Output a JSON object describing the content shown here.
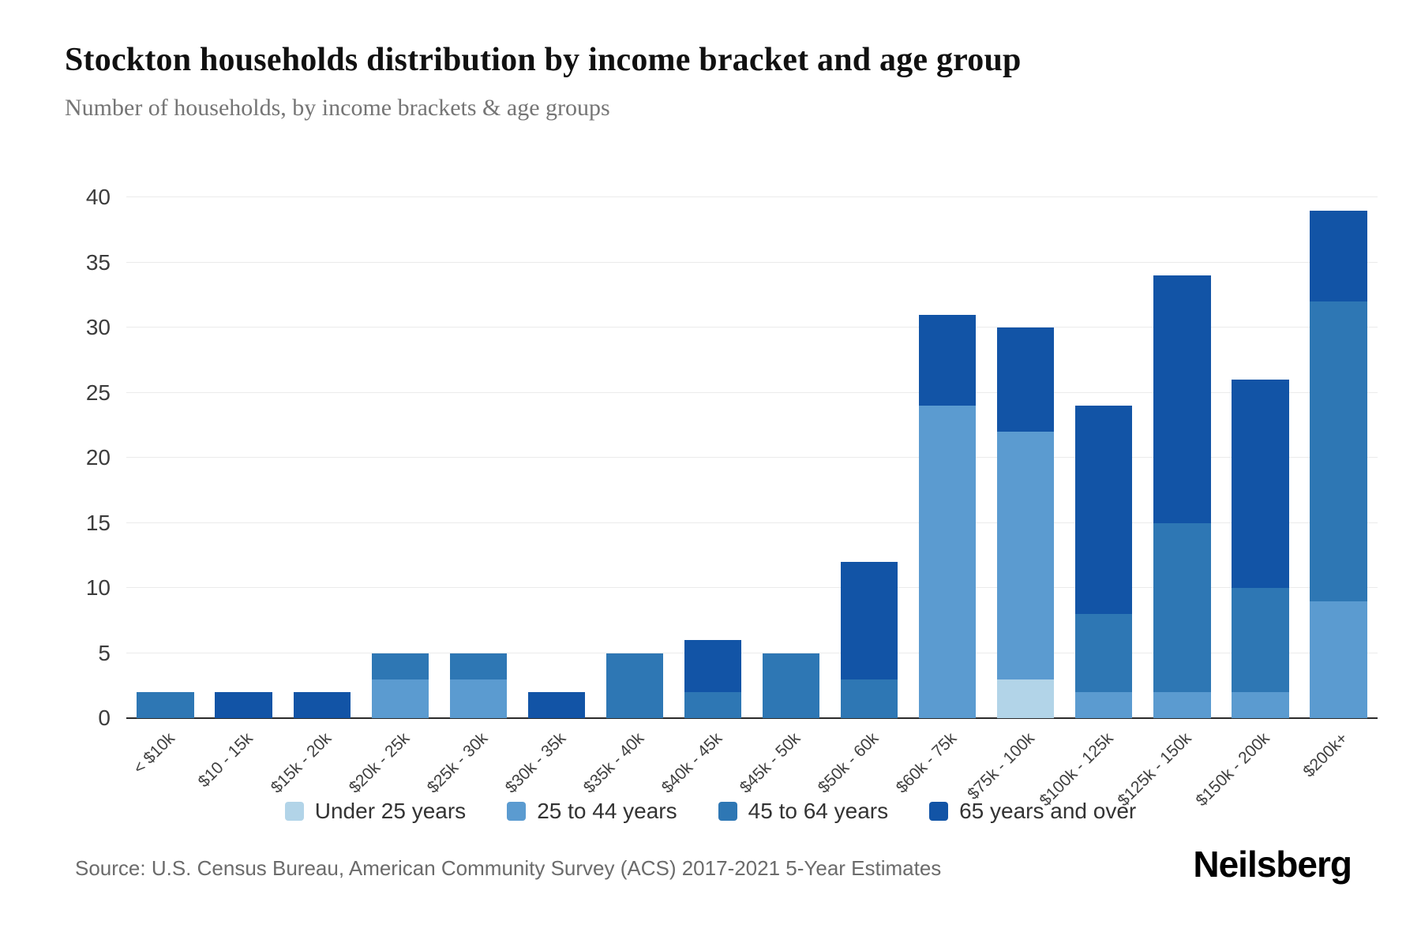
{
  "chart": {
    "title": "Stockton households distribution by income bracket and age group",
    "subtitle": "Number of households, by income brackets & age groups",
    "source": "Source: U.S. Census Bureau, American Community Survey (ACS) 2017-2021 5-Year Estimates",
    "brand": "Neilsberg"
  },
  "chart_data": {
    "type": "bar",
    "stacked": true,
    "title": "Stockton households distribution by income bracket and age group",
    "subtitle": "Number of households, by income brackets & age groups",
    "xlabel": "",
    "ylabel": "",
    "ylim": [
      0,
      40
    ],
    "yticks": [
      0,
      5,
      10,
      15,
      20,
      25,
      30,
      35,
      40
    ],
    "grid": true,
    "legend_position": "bottom",
    "categories": [
      "< $10k",
      "$10 - 15k",
      "$15k - 20k",
      "$20k - 25k",
      "$25k - 30k",
      "$30k - 35k",
      "$35k - 40k",
      "$40k - 45k",
      "$45k - 50k",
      "$50k - 60k",
      "$60k - 75k",
      "$75k - 100k",
      "$100k - 125k",
      "$125k - 150k",
      "$150k - 200k",
      "$200k+"
    ],
    "series": [
      {
        "name": "Under 25 years",
        "color": "#b2d4e8",
        "values": [
          0,
          0,
          0,
          0,
          0,
          0,
          0,
          0,
          0,
          0,
          0,
          3,
          0,
          0,
          0,
          0
        ]
      },
      {
        "name": "25 to 44 years",
        "color": "#5b9bd0",
        "values": [
          0,
          0,
          0,
          3,
          3,
          0,
          0,
          0,
          0,
          0,
          24,
          19,
          2,
          2,
          2,
          9
        ]
      },
      {
        "name": "45 to 64 years",
        "color": "#2e77b4",
        "values": [
          2,
          0,
          0,
          2,
          2,
          0,
          5,
          2,
          5,
          3,
          0,
          0,
          6,
          13,
          8,
          23
        ]
      },
      {
        "name": "65 years and over",
        "color": "#1254a6",
        "values": [
          0,
          2,
          2,
          0,
          0,
          2,
          0,
          4,
          0,
          9,
          7,
          8,
          16,
          19,
          16,
          7
        ]
      }
    ],
    "totals": [
      2,
      2,
      2,
      5,
      5,
      2,
      5,
      6,
      5,
      12,
      31,
      30,
      24,
      34,
      26,
      39
    ]
  }
}
